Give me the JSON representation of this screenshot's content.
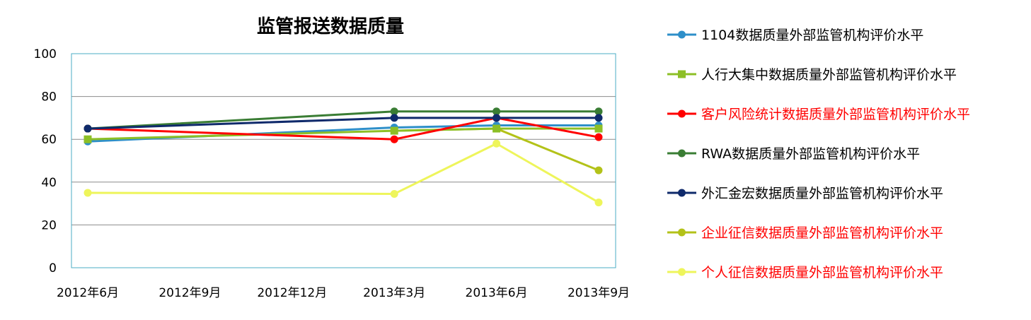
{
  "chart_data": {
    "type": "line",
    "title": "监管报送数据质量",
    "xlabel": "",
    "ylabel": "",
    "categories": [
      "2012年6月",
      "2012年9月",
      "2012年12月",
      "2013年3月",
      "2013年6月",
      "2013年9月"
    ],
    "ylim": [
      0,
      100
    ],
    "yticks": [
      0,
      20,
      40,
      60,
      80,
      100
    ],
    "grid": true,
    "legend_position": "right",
    "plot_border_color": "#4bacc6",
    "series": [
      {
        "name": "1104数据质量外部监管机构评价水平",
        "color": "#2e8fc9",
        "marker": "circle",
        "legend_color": "#000000",
        "points": [
          [
            0,
            59
          ],
          [
            3,
            65.5
          ],
          [
            4,
            66.5
          ],
          [
            5,
            66.5
          ]
        ]
      },
      {
        "name": "人行大集中数据质量外部监管机构评价水平",
        "color": "#8cbf26",
        "marker": "square",
        "legend_color": "#000000",
        "points": [
          [
            0,
            60
          ],
          [
            3,
            64
          ],
          [
            4,
            65
          ],
          [
            5,
            65
          ]
        ]
      },
      {
        "name": "客户风险统计数据质量外部监管机构评价水平",
        "color": "#ff0000",
        "marker": "circle",
        "legend_color": "#ff0000",
        "points": [
          [
            0,
            65
          ],
          [
            3,
            60
          ],
          [
            4,
            70
          ],
          [
            5,
            61
          ]
        ]
      },
      {
        "name": "RWA数据质量外部监管机构评价水平",
        "color": "#3a7d34",
        "marker": "circle",
        "legend_color": "#000000",
        "points": [
          [
            0,
            65
          ],
          [
            3,
            73
          ],
          [
            4,
            73
          ],
          [
            5,
            73
          ]
        ]
      },
      {
        "name": "外汇金宏数据质量外部监管机构评价水平",
        "color": "#0f2a6b",
        "marker": "circle",
        "legend_color": "#000000",
        "points": [
          [
            0,
            65
          ],
          [
            3,
            70
          ],
          [
            4,
            70
          ],
          [
            5,
            70
          ]
        ]
      },
      {
        "name": "企业征信数据质量外部监管机构评价水平",
        "color": "#b3c219",
        "marker": "circle",
        "legend_color": "#ff0000",
        "points": [
          [
            3,
            64
          ],
          [
            4,
            65
          ],
          [
            5,
            45.5
          ]
        ]
      },
      {
        "name": "个人征信数据质量外部监管机构评价水平",
        "color": "#eef55b",
        "marker": "circle",
        "legend_color": "#ff0000",
        "points": [
          [
            0,
            35
          ],
          [
            3,
            34.5
          ],
          [
            4,
            58
          ],
          [
            5,
            30.5
          ]
        ]
      }
    ]
  }
}
